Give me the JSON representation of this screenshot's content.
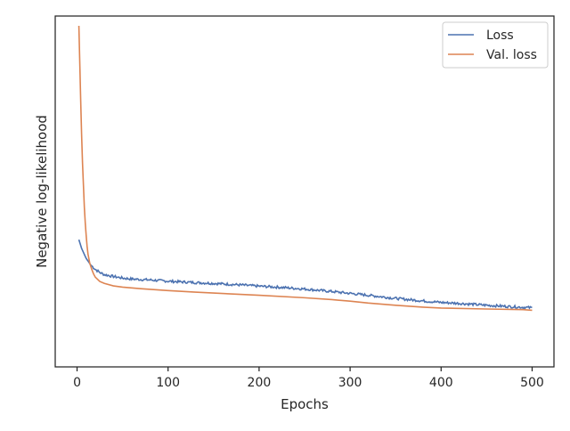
{
  "chart_data": {
    "type": "line",
    "xlabel": "Epochs",
    "ylabel": "Negative log-likelihood",
    "xlim": [
      -24,
      524
    ],
    "ylim": [
      0,
      1
    ],
    "x_ticks": [
      0,
      100,
      200,
      300,
      400,
      500
    ],
    "y_ticks_shown": false,
    "grid": false,
    "legend_position": "top-right",
    "series": [
      {
        "name": "Loss",
        "color": "#4c72b0",
        "points": [
          [
            2,
            0.316
          ],
          [
            5,
            0.288
          ],
          [
            10,
            0.256
          ],
          [
            15,
            0.235
          ],
          [
            20,
            0.221
          ],
          [
            25,
            0.211
          ],
          [
            30,
            0.204
          ],
          [
            40,
            0.198
          ],
          [
            50,
            0.193
          ],
          [
            60,
            0.19
          ],
          [
            80,
            0.187
          ],
          [
            100,
            0.183
          ],
          [
            120,
            0.18
          ],
          [
            150,
            0.176
          ],
          [
            180,
            0.171
          ],
          [
            200,
            0.167
          ],
          [
            220,
            0.164
          ],
          [
            250,
            0.158
          ],
          [
            280,
            0.15
          ],
          [
            300,
            0.144
          ],
          [
            320,
            0.138
          ],
          [
            350,
            0.128
          ],
          [
            380,
            0.12
          ],
          [
            400,
            0.115
          ],
          [
            420,
            0.112
          ],
          [
            450,
            0.106
          ],
          [
            480,
            0.101
          ],
          [
            500,
            0.098
          ]
        ]
      },
      {
        "name": "Val. loss",
        "color": "#dd8452",
        "points": [
          [
            2,
            1.0
          ],
          [
            3,
            0.88
          ],
          [
            4,
            0.76
          ],
          [
            5,
            0.65
          ],
          [
            6,
            0.56
          ],
          [
            7,
            0.49
          ],
          [
            8,
            0.42
          ],
          [
            9,
            0.37
          ],
          [
            10,
            0.33
          ],
          [
            11,
            0.295
          ],
          [
            12,
            0.27
          ],
          [
            14,
            0.24
          ],
          [
            16,
            0.222
          ],
          [
            18,
            0.207
          ],
          [
            20,
            0.196
          ],
          [
            25,
            0.182
          ],
          [
            30,
            0.176
          ],
          [
            40,
            0.168
          ],
          [
            50,
            0.164
          ],
          [
            70,
            0.159
          ],
          [
            100,
            0.153
          ],
          [
            130,
            0.148
          ],
          [
            150,
            0.145
          ],
          [
            200,
            0.138
          ],
          [
            250,
            0.13
          ],
          [
            280,
            0.124
          ],
          [
            300,
            0.119
          ],
          [
            320,
            0.113
          ],
          [
            350,
            0.106
          ],
          [
            380,
            0.1
          ],
          [
            400,
            0.097
          ],
          [
            450,
            0.094
          ],
          [
            490,
            0.092
          ],
          [
            500,
            0.09
          ]
        ]
      }
    ]
  }
}
